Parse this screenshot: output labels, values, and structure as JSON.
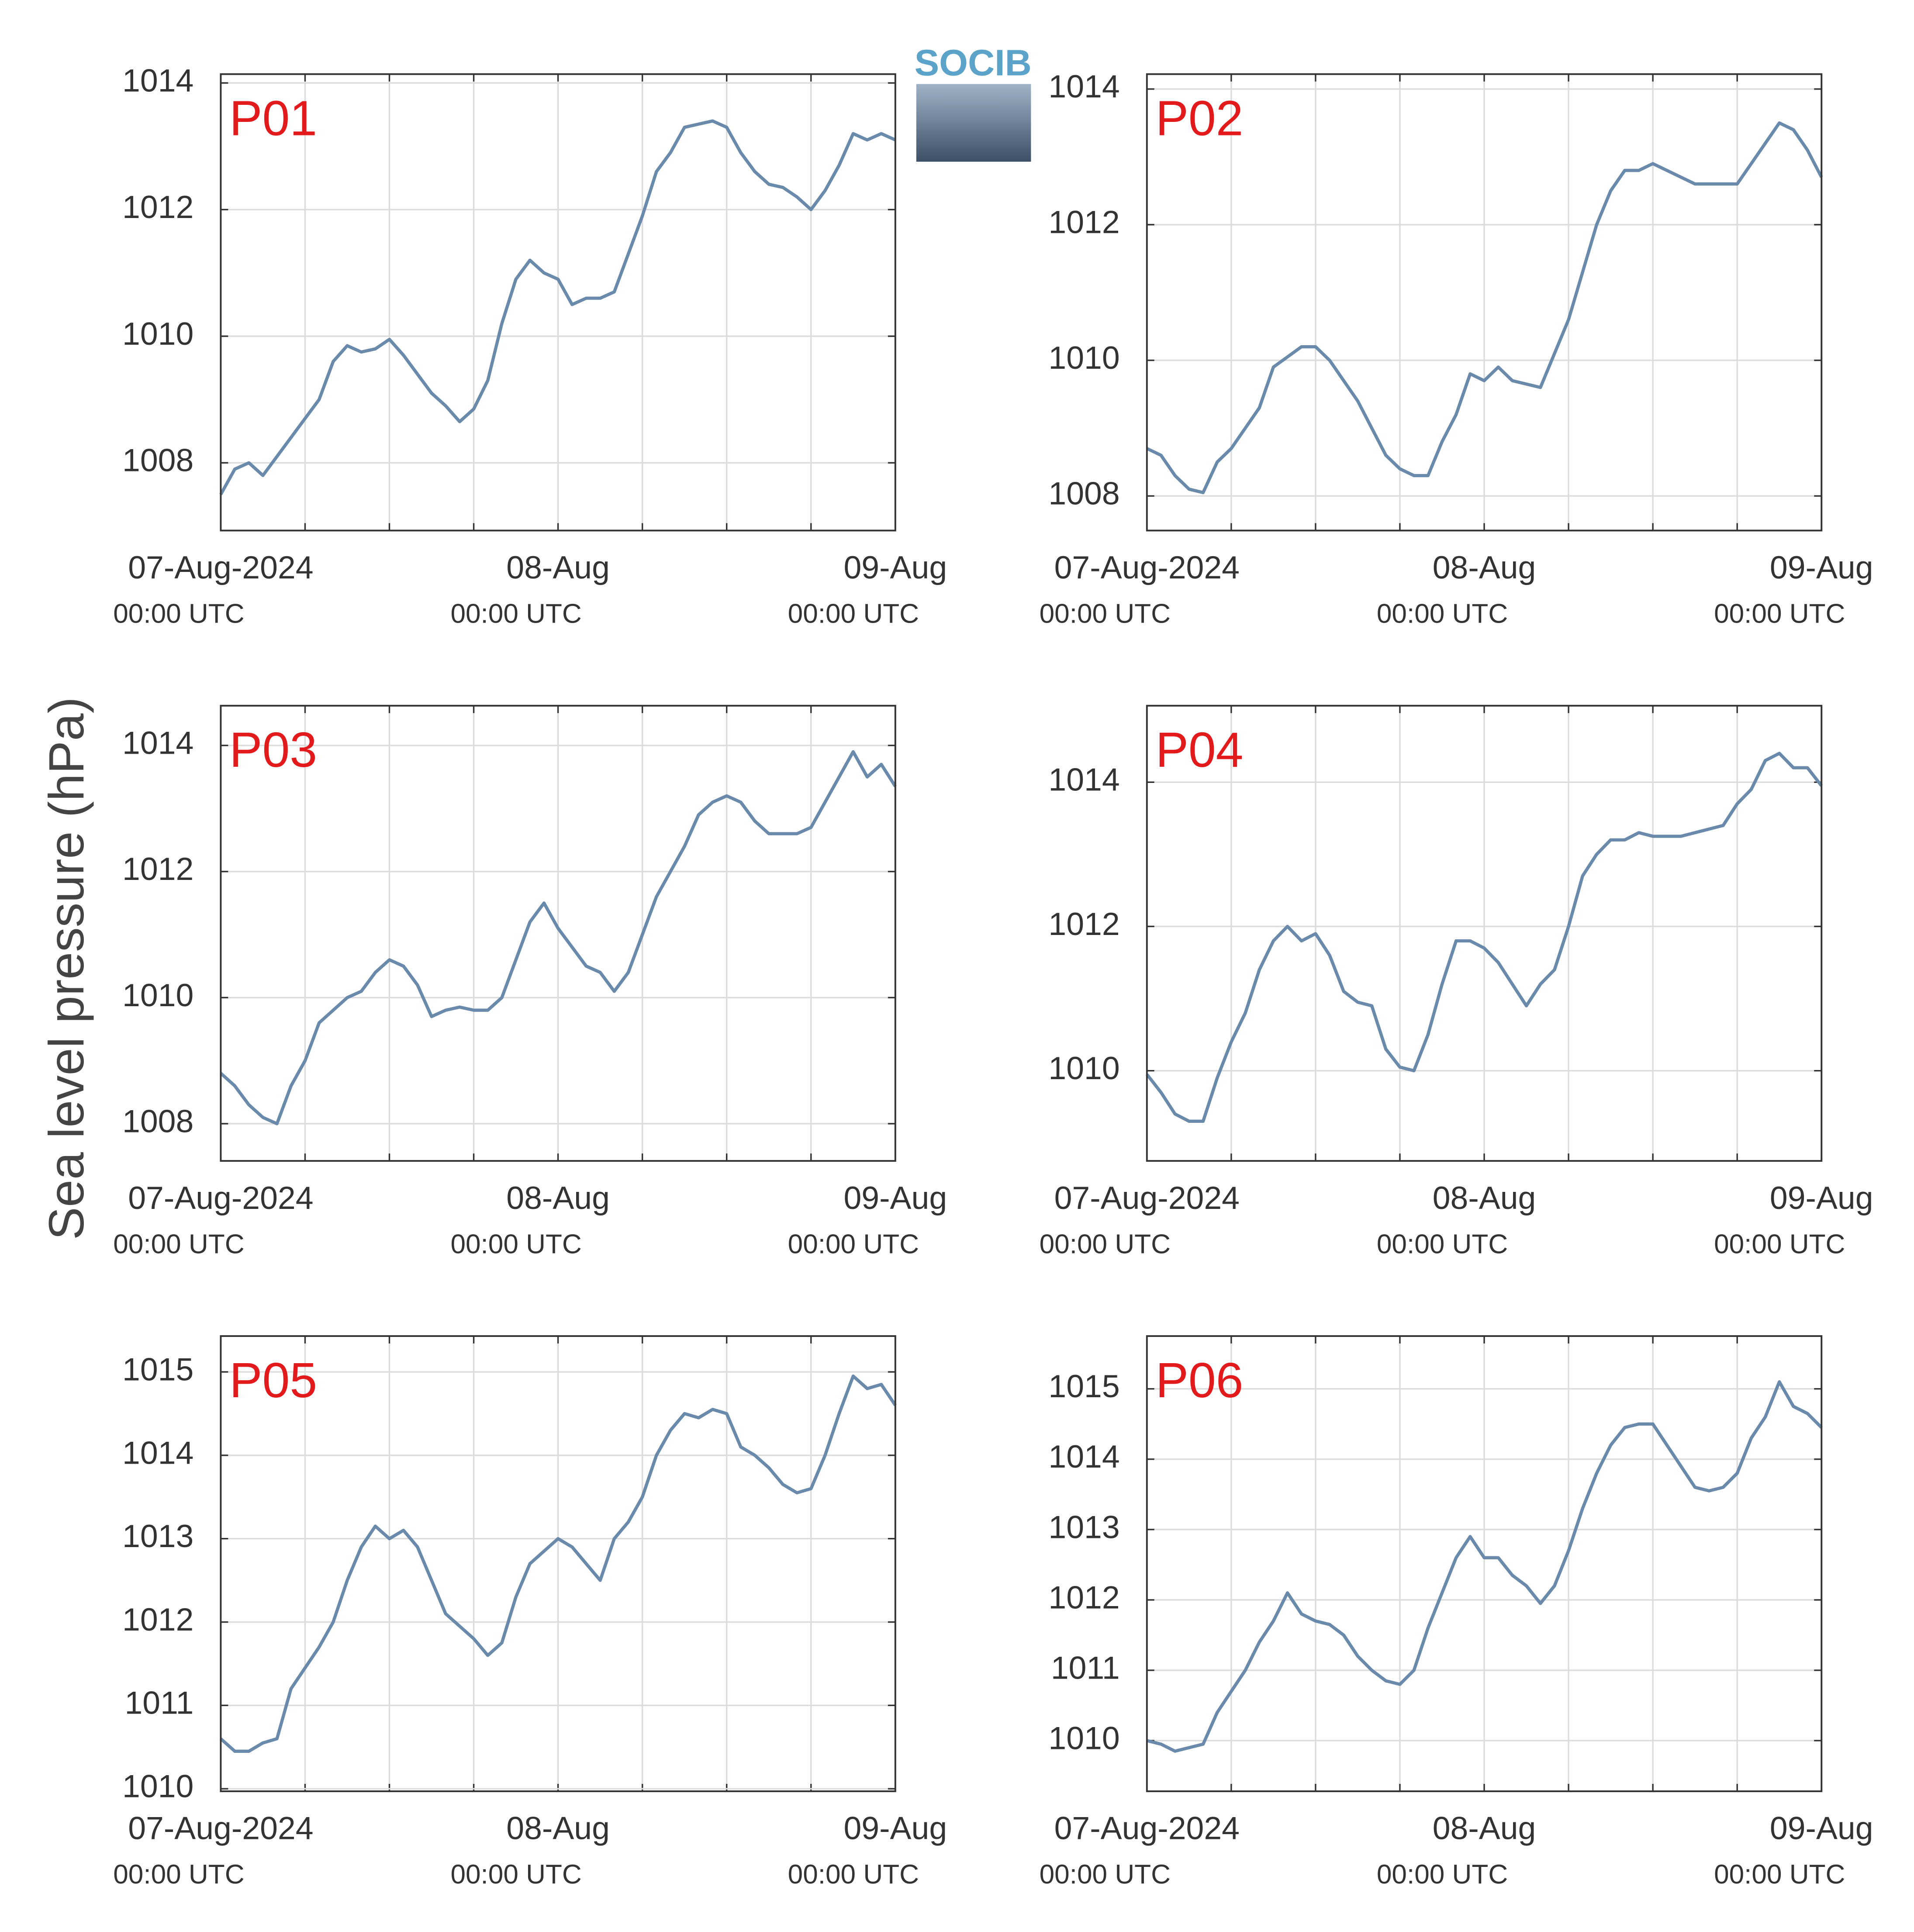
{
  "ylabel": "Sea level pressure (hPa)",
  "logo": "SOCIB",
  "chart_data": [
    {
      "type": "line",
      "title": "P01",
      "color": "#6a8aab",
      "grid": true,
      "x": [
        "2024-08-07T00:00Z",
        "2024-08-07T01:00Z",
        "2024-08-07T02:00Z",
        "2024-08-07T03:00Z",
        "2024-08-07T04:00Z",
        "2024-08-07T05:00Z",
        "2024-08-07T06:00Z",
        "2024-08-07T07:00Z",
        "2024-08-07T08:00Z",
        "2024-08-07T09:00Z",
        "2024-08-07T10:00Z",
        "2024-08-07T11:00Z",
        "2024-08-07T12:00Z",
        "2024-08-07T13:00Z",
        "2024-08-07T14:00Z",
        "2024-08-07T15:00Z",
        "2024-08-07T16:00Z",
        "2024-08-07T17:00Z",
        "2024-08-07T18:00Z",
        "2024-08-07T19:00Z",
        "2024-08-07T20:00Z",
        "2024-08-07T21:00Z",
        "2024-08-07T22:00Z",
        "2024-08-07T23:00Z",
        "2024-08-08T00:00Z",
        "2024-08-08T01:00Z",
        "2024-08-08T02:00Z",
        "2024-08-08T03:00Z",
        "2024-08-08T04:00Z",
        "2024-08-08T05:00Z",
        "2024-08-08T06:00Z",
        "2024-08-08T07:00Z",
        "2024-08-08T08:00Z",
        "2024-08-08T09:00Z",
        "2024-08-08T10:00Z",
        "2024-08-08T11:00Z",
        "2024-08-08T12:00Z",
        "2024-08-08T13:00Z",
        "2024-08-08T14:00Z",
        "2024-08-08T15:00Z",
        "2024-08-08T16:00Z",
        "2024-08-08T17:00Z",
        "2024-08-08T18:00Z",
        "2024-08-08T19:00Z",
        "2024-08-08T20:00Z",
        "2024-08-08T21:00Z",
        "2024-08-08T22:00Z",
        "2024-08-08T23:00Z",
        "2024-08-09T00:00Z"
      ],
      "values": [
        1007.5,
        1007.9,
        1008.0,
        1007.8,
        1008.1,
        1008.4,
        1008.7,
        1009.0,
        1009.6,
        1009.85,
        1009.75,
        1009.8,
        1009.95,
        1009.7,
        1009.4,
        1009.1,
        1008.9,
        1008.65,
        1008.85,
        1009.3,
        1010.2,
        1010.9,
        1011.2,
        1011.0,
        1010.9,
        1010.5,
        1010.6,
        1010.6,
        1010.7,
        1011.3,
        1011.9,
        1012.6,
        1012.9,
        1013.3,
        1013.35,
        1013.4,
        1013.3,
        1012.9,
        1012.6,
        1012.4,
        1012.35,
        1012.2,
        1012.0,
        1012.3,
        1012.7,
        1013.2,
        1013.1,
        1013.2,
        1013.1
      ],
      "xlim": [
        "2024-08-07T00:00Z",
        "2024-08-09T00:00Z"
      ],
      "xticks": [
        {
          "value": "2024-08-07T00:00Z",
          "label": [
            "07-Aug-2024",
            "00:00 UTC"
          ]
        },
        "2024-08-07T06:00Z",
        "2024-08-07T12:00Z",
        "2024-08-07T18:00Z",
        {
          "value": "2024-08-08T00:00Z",
          "label": [
            "08-Aug",
            "00:00 UTC"
          ]
        },
        "2024-08-08T06:00Z",
        "2024-08-08T12:00Z",
        "2024-08-08T18:00Z",
        {
          "value": "2024-08-09T00:00Z",
          "label": [
            "09-Aug",
            "00:00 UTC"
          ]
        }
      ],
      "ylim": [
        1006.93,
        1014.14
      ],
      "yticks": [
        1008,
        1010,
        1012,
        1014
      ]
    },
    {
      "type": "line",
      "title": "P02",
      "color": "#6a8aab",
      "grid": true,
      "x": [
        "2024-08-07T00:00Z",
        "2024-08-07T01:00Z",
        "2024-08-07T02:00Z",
        "2024-08-07T03:00Z",
        "2024-08-07T04:00Z",
        "2024-08-07T05:00Z",
        "2024-08-07T06:00Z",
        "2024-08-07T07:00Z",
        "2024-08-07T08:00Z",
        "2024-08-07T09:00Z",
        "2024-08-07T10:00Z",
        "2024-08-07T11:00Z",
        "2024-08-07T12:00Z",
        "2024-08-07T13:00Z",
        "2024-08-07T14:00Z",
        "2024-08-07T15:00Z",
        "2024-08-07T16:00Z",
        "2024-08-07T17:00Z",
        "2024-08-07T18:00Z",
        "2024-08-07T19:00Z",
        "2024-08-07T20:00Z",
        "2024-08-07T21:00Z",
        "2024-08-07T22:00Z",
        "2024-08-07T23:00Z",
        "2024-08-08T00:00Z",
        "2024-08-08T01:00Z",
        "2024-08-08T02:00Z",
        "2024-08-08T03:00Z",
        "2024-08-08T04:00Z",
        "2024-08-08T05:00Z",
        "2024-08-08T06:00Z",
        "2024-08-08T07:00Z",
        "2024-08-08T08:00Z",
        "2024-08-08T09:00Z",
        "2024-08-08T10:00Z",
        "2024-08-08T11:00Z",
        "2024-08-08T12:00Z",
        "2024-08-08T13:00Z",
        "2024-08-08T14:00Z",
        "2024-08-08T15:00Z",
        "2024-08-08T16:00Z",
        "2024-08-08T17:00Z",
        "2024-08-08T18:00Z",
        "2024-08-08T19:00Z",
        "2024-08-08T20:00Z",
        "2024-08-08T21:00Z",
        "2024-08-08T22:00Z",
        "2024-08-08T23:00Z",
        "2024-08-09T00:00Z"
      ],
      "values": [
        1008.7,
        1008.6,
        1008.3,
        1008.1,
        1008.05,
        1008.5,
        1008.7,
        1009.0,
        1009.3,
        1009.9,
        1010.05,
        1010.2,
        1010.2,
        1010.0,
        1009.7,
        1009.4,
        1009.0,
        1008.6,
        1008.4,
        1008.3,
        1008.3,
        1008.8,
        1009.2,
        1009.8,
        1009.7,
        1009.9,
        1009.7,
        1009.65,
        1009.6,
        1010.1,
        1010.6,
        1011.3,
        1012.0,
        1012.5,
        1012.8,
        1012.8,
        1012.9,
        1012.8,
        1012.7,
        1012.6,
        1012.6,
        1012.6,
        1012.6,
        1012.9,
        1013.2,
        1013.5,
        1013.4,
        1013.1,
        1012.7
      ],
      "xlim": [
        "2024-08-07T00:00Z",
        "2024-08-09T00:00Z"
      ],
      "xticks": [
        {
          "value": "2024-08-07T00:00Z",
          "label": [
            "07-Aug-2024",
            "00:00 UTC"
          ]
        },
        "2024-08-07T06:00Z",
        "2024-08-07T12:00Z",
        "2024-08-07T18:00Z",
        {
          "value": "2024-08-08T00:00Z",
          "label": [
            "08-Aug",
            "00:00 UTC"
          ]
        },
        "2024-08-08T06:00Z",
        "2024-08-08T12:00Z",
        "2024-08-08T18:00Z",
        {
          "value": "2024-08-09T00:00Z",
          "label": [
            "09-Aug",
            "00:00 UTC"
          ]
        }
      ],
      "ylim": [
        1007.49,
        1014.22
      ],
      "yticks": [
        1008,
        1010,
        1012,
        1014
      ]
    },
    {
      "type": "line",
      "title": "P03",
      "color": "#6a8aab",
      "grid": true,
      "x": [
        "2024-08-07T00:00Z",
        "2024-08-07T01:00Z",
        "2024-08-07T02:00Z",
        "2024-08-07T03:00Z",
        "2024-08-07T04:00Z",
        "2024-08-07T05:00Z",
        "2024-08-07T06:00Z",
        "2024-08-07T07:00Z",
        "2024-08-07T08:00Z",
        "2024-08-07T09:00Z",
        "2024-08-07T10:00Z",
        "2024-08-07T11:00Z",
        "2024-08-07T12:00Z",
        "2024-08-07T13:00Z",
        "2024-08-07T14:00Z",
        "2024-08-07T15:00Z",
        "2024-08-07T16:00Z",
        "2024-08-07T17:00Z",
        "2024-08-07T18:00Z",
        "2024-08-07T19:00Z",
        "2024-08-07T20:00Z",
        "2024-08-07T21:00Z",
        "2024-08-07T22:00Z",
        "2024-08-07T23:00Z",
        "2024-08-08T00:00Z",
        "2024-08-08T01:00Z",
        "2024-08-08T02:00Z",
        "2024-08-08T03:00Z",
        "2024-08-08T04:00Z",
        "2024-08-08T05:00Z",
        "2024-08-08T06:00Z",
        "2024-08-08T07:00Z",
        "2024-08-08T08:00Z",
        "2024-08-08T09:00Z",
        "2024-08-08T10:00Z",
        "2024-08-08T11:00Z",
        "2024-08-08T12:00Z",
        "2024-08-08T13:00Z",
        "2024-08-08T14:00Z",
        "2024-08-08T15:00Z",
        "2024-08-08T16:00Z",
        "2024-08-08T17:00Z",
        "2024-08-08T18:00Z",
        "2024-08-08T19:00Z",
        "2024-08-08T20:00Z",
        "2024-08-08T21:00Z",
        "2024-08-08T22:00Z",
        "2024-08-08T23:00Z",
        "2024-08-09T00:00Z"
      ],
      "values": [
        1008.8,
        1008.6,
        1008.3,
        1008.1,
        1008.0,
        1008.6,
        1009.0,
        1009.6,
        1009.8,
        1010.0,
        1010.1,
        1010.4,
        1010.6,
        1010.5,
        1010.2,
        1009.7,
        1009.8,
        1009.85,
        1009.8,
        1009.8,
        1010.0,
        1010.6,
        1011.2,
        1011.5,
        1011.1,
        1010.8,
        1010.5,
        1010.4,
        1010.1,
        1010.4,
        1011.0,
        1011.6,
        1012.0,
        1012.4,
        1012.9,
        1013.1,
        1013.2,
        1013.1,
        1012.8,
        1012.6,
        1012.6,
        1012.6,
        1012.7,
        1013.1,
        1013.5,
        1013.9,
        1013.5,
        1013.7,
        1013.35
      ],
      "xlim": [
        "2024-08-07T00:00Z",
        "2024-08-09T00:00Z"
      ],
      "xticks": [
        {
          "value": "2024-08-07T00:00Z",
          "label": [
            "07-Aug-2024",
            "00:00 UTC"
          ]
        },
        "2024-08-07T06:00Z",
        "2024-08-07T12:00Z",
        "2024-08-07T18:00Z",
        {
          "value": "2024-08-08T00:00Z",
          "label": [
            "08-Aug",
            "00:00 UTC"
          ]
        },
        "2024-08-08T06:00Z",
        "2024-08-08T12:00Z",
        "2024-08-08T18:00Z",
        {
          "value": "2024-08-09T00:00Z",
          "label": [
            "09-Aug",
            "00:00 UTC"
          ]
        }
      ],
      "ylim": [
        1007.41,
        1014.63
      ],
      "yticks": [
        1008,
        1010,
        1012,
        1014
      ]
    },
    {
      "type": "line",
      "title": "P04",
      "color": "#6a8aab",
      "grid": true,
      "x": [
        "2024-08-07T00:00Z",
        "2024-08-07T01:00Z",
        "2024-08-07T02:00Z",
        "2024-08-07T03:00Z",
        "2024-08-07T04:00Z",
        "2024-08-07T05:00Z",
        "2024-08-07T06:00Z",
        "2024-08-07T07:00Z",
        "2024-08-07T08:00Z",
        "2024-08-07T09:00Z",
        "2024-08-07T10:00Z",
        "2024-08-07T11:00Z",
        "2024-08-07T12:00Z",
        "2024-08-07T13:00Z",
        "2024-08-07T14:00Z",
        "2024-08-07T15:00Z",
        "2024-08-07T16:00Z",
        "2024-08-07T17:00Z",
        "2024-08-07T18:00Z",
        "2024-08-07T19:00Z",
        "2024-08-07T20:00Z",
        "2024-08-07T21:00Z",
        "2024-08-07T22:00Z",
        "2024-08-07T23:00Z",
        "2024-08-08T00:00Z",
        "2024-08-08T01:00Z",
        "2024-08-08T02:00Z",
        "2024-08-08T03:00Z",
        "2024-08-08T04:00Z",
        "2024-08-08T05:00Z",
        "2024-08-08T06:00Z",
        "2024-08-08T07:00Z",
        "2024-08-08T08:00Z",
        "2024-08-08T09:00Z",
        "2024-08-08T10:00Z",
        "2024-08-08T11:00Z",
        "2024-08-08T12:00Z",
        "2024-08-08T13:00Z",
        "2024-08-08T14:00Z",
        "2024-08-08T15:00Z",
        "2024-08-08T16:00Z",
        "2024-08-08T17:00Z",
        "2024-08-08T18:00Z",
        "2024-08-08T19:00Z",
        "2024-08-08T20:00Z",
        "2024-08-08T21:00Z",
        "2024-08-08T22:00Z",
        "2024-08-08T23:00Z",
        "2024-08-09T00:00Z"
      ],
      "values": [
        1009.95,
        1009.7,
        1009.4,
        1009.3,
        1009.3,
        1009.9,
        1010.4,
        1010.8,
        1011.4,
        1011.8,
        1012.0,
        1011.8,
        1011.9,
        1011.6,
        1011.1,
        1010.95,
        1010.9,
        1010.3,
        1010.05,
        1010.0,
        1010.5,
        1011.2,
        1011.8,
        1011.8,
        1011.7,
        1011.5,
        1011.2,
        1010.9,
        1011.2,
        1011.4,
        1012.0,
        1012.7,
        1013.0,
        1013.2,
        1013.2,
        1013.3,
        1013.25,
        1013.25,
        1013.25,
        1013.3,
        1013.35,
        1013.4,
        1013.7,
        1013.9,
        1014.3,
        1014.4,
        1014.2,
        1014.2,
        1013.95
      ],
      "xlim": [
        "2024-08-07T00:00Z",
        "2024-08-09T00:00Z"
      ],
      "xticks": [
        {
          "value": "2024-08-07T00:00Z",
          "label": [
            "07-Aug-2024",
            "00:00 UTC"
          ]
        },
        "2024-08-07T06:00Z",
        "2024-08-07T12:00Z",
        "2024-08-07T18:00Z",
        {
          "value": "2024-08-08T00:00Z",
          "label": [
            "08-Aug",
            "00:00 UTC"
          ]
        },
        "2024-08-08T06:00Z",
        "2024-08-08T12:00Z",
        "2024-08-08T18:00Z",
        {
          "value": "2024-08-09T00:00Z",
          "label": [
            "09-Aug",
            "00:00 UTC"
          ]
        }
      ],
      "ylim": [
        1008.75,
        1015.06
      ],
      "yticks": [
        1010,
        1012,
        1014
      ]
    },
    {
      "type": "line",
      "title": "P05",
      "color": "#6a8aab",
      "grid": true,
      "x": [
        "2024-08-07T00:00Z",
        "2024-08-07T01:00Z",
        "2024-08-07T02:00Z",
        "2024-08-07T03:00Z",
        "2024-08-07T04:00Z",
        "2024-08-07T05:00Z",
        "2024-08-07T06:00Z",
        "2024-08-07T07:00Z",
        "2024-08-07T08:00Z",
        "2024-08-07T09:00Z",
        "2024-08-07T10:00Z",
        "2024-08-07T11:00Z",
        "2024-08-07T12:00Z",
        "2024-08-07T13:00Z",
        "2024-08-07T14:00Z",
        "2024-08-07T15:00Z",
        "2024-08-07T16:00Z",
        "2024-08-07T17:00Z",
        "2024-08-07T18:00Z",
        "2024-08-07T19:00Z",
        "2024-08-07T20:00Z",
        "2024-08-07T21:00Z",
        "2024-08-07T22:00Z",
        "2024-08-07T23:00Z",
        "2024-08-08T00:00Z",
        "2024-08-08T01:00Z",
        "2024-08-08T02:00Z",
        "2024-08-08T03:00Z",
        "2024-08-08T04:00Z",
        "2024-08-08T05:00Z",
        "2024-08-08T06:00Z",
        "2024-08-08T07:00Z",
        "2024-08-08T08:00Z",
        "2024-08-08T09:00Z",
        "2024-08-08T10:00Z",
        "2024-08-08T11:00Z",
        "2024-08-08T12:00Z",
        "2024-08-08T13:00Z",
        "2024-08-08T14:00Z",
        "2024-08-08T15:00Z",
        "2024-08-08T16:00Z",
        "2024-08-08T17:00Z",
        "2024-08-08T18:00Z",
        "2024-08-08T19:00Z",
        "2024-08-08T20:00Z",
        "2024-08-08T21:00Z",
        "2024-08-08T22:00Z",
        "2024-08-08T23:00Z",
        "2024-08-09T00:00Z"
      ],
      "values": [
        1010.6,
        1010.45,
        1010.45,
        1010.55,
        1010.6,
        1011.2,
        1011.45,
        1011.7,
        1012.0,
        1012.5,
        1012.9,
        1013.15,
        1013.0,
        1013.1,
        1012.9,
        1012.5,
        1012.1,
        1011.95,
        1011.8,
        1011.6,
        1011.75,
        1012.3,
        1012.7,
        1012.85,
        1013.0,
        1012.9,
        1012.7,
        1012.5,
        1013.0,
        1013.2,
        1013.5,
        1014.0,
        1014.3,
        1014.5,
        1014.45,
        1014.55,
        1014.5,
        1014.1,
        1014.0,
        1013.85,
        1013.65,
        1013.55,
        1013.6,
        1014.0,
        1014.5,
        1014.95,
        1014.8,
        1014.85,
        1014.6
      ],
      "xlim": [
        "2024-08-07T00:00Z",
        "2024-08-09T00:00Z"
      ],
      "xticks": [
        {
          "value": "2024-08-07T00:00Z",
          "label": [
            "07-Aug-2024",
            "00:00 UTC"
          ]
        },
        "2024-08-07T06:00Z",
        "2024-08-07T12:00Z",
        "2024-08-07T18:00Z",
        {
          "value": "2024-08-08T00:00Z",
          "label": [
            "08-Aug",
            "00:00 UTC"
          ]
        },
        "2024-08-08T06:00Z",
        "2024-08-08T12:00Z",
        "2024-08-08T18:00Z",
        {
          "value": "2024-08-09T00:00Z",
          "label": [
            "09-Aug",
            "00:00 UTC"
          ]
        }
      ],
      "ylim": [
        1009.97,
        1015.43
      ],
      "yticks": [
        1010,
        1011,
        1012,
        1013,
        1014,
        1015
      ]
    },
    {
      "type": "line",
      "title": "P06",
      "color": "#6a8aab",
      "grid": true,
      "x": [
        "2024-08-07T00:00Z",
        "2024-08-07T01:00Z",
        "2024-08-07T02:00Z",
        "2024-08-07T03:00Z",
        "2024-08-07T04:00Z",
        "2024-08-07T05:00Z",
        "2024-08-07T06:00Z",
        "2024-08-07T07:00Z",
        "2024-08-07T08:00Z",
        "2024-08-07T09:00Z",
        "2024-08-07T10:00Z",
        "2024-08-07T11:00Z",
        "2024-08-07T12:00Z",
        "2024-08-07T13:00Z",
        "2024-08-07T14:00Z",
        "2024-08-07T15:00Z",
        "2024-08-07T16:00Z",
        "2024-08-07T17:00Z",
        "2024-08-07T18:00Z",
        "2024-08-07T19:00Z",
        "2024-08-07T20:00Z",
        "2024-08-07T21:00Z",
        "2024-08-07T22:00Z",
        "2024-08-07T23:00Z",
        "2024-08-08T00:00Z",
        "2024-08-08T01:00Z",
        "2024-08-08T02:00Z",
        "2024-08-08T03:00Z",
        "2024-08-08T04:00Z",
        "2024-08-08T05:00Z",
        "2024-08-08T06:00Z",
        "2024-08-08T07:00Z",
        "2024-08-08T08:00Z",
        "2024-08-08T09:00Z",
        "2024-08-08T10:00Z",
        "2024-08-08T11:00Z",
        "2024-08-08T12:00Z",
        "2024-08-08T13:00Z",
        "2024-08-08T14:00Z",
        "2024-08-08T15:00Z",
        "2024-08-08T16:00Z",
        "2024-08-08T17:00Z",
        "2024-08-08T18:00Z",
        "2024-08-08T19:00Z",
        "2024-08-08T20:00Z",
        "2024-08-08T21:00Z",
        "2024-08-08T22:00Z",
        "2024-08-08T23:00Z",
        "2024-08-09T00:00Z"
      ],
      "values": [
        1010.0,
        1009.95,
        1009.85,
        1009.9,
        1009.95,
        1010.4,
        1010.7,
        1011.0,
        1011.4,
        1011.7,
        1012.1,
        1011.8,
        1011.7,
        1011.65,
        1011.5,
        1011.2,
        1011.0,
        1010.85,
        1010.8,
        1011.0,
        1011.6,
        1012.1,
        1012.6,
        1012.9,
        1012.6,
        1012.6,
        1012.35,
        1012.2,
        1011.95,
        1012.2,
        1012.7,
        1013.3,
        1013.8,
        1014.2,
        1014.45,
        1014.5,
        1014.5,
        1014.2,
        1013.9,
        1013.6,
        1013.55,
        1013.6,
        1013.8,
        1014.3,
        1014.6,
        1015.1,
        1014.75,
        1014.65,
        1014.45
      ],
      "xlim": [
        "2024-08-07T00:00Z",
        "2024-08-09T00:00Z"
      ],
      "xticks": [
        {
          "value": "2024-08-07T00:00Z",
          "label": [
            "07-Aug-2024",
            "00:00 UTC"
          ]
        },
        "2024-08-07T06:00Z",
        "2024-08-07T12:00Z",
        "2024-08-07T18:00Z",
        {
          "value": "2024-08-08T00:00Z",
          "label": [
            "08-Aug",
            "00:00 UTC"
          ]
        },
        "2024-08-08T06:00Z",
        "2024-08-08T12:00Z",
        "2024-08-08T18:00Z",
        {
          "value": "2024-08-09T00:00Z",
          "label": [
            "09-Aug",
            "00:00 UTC"
          ]
        }
      ],
      "ylim": [
        1009.28,
        1015.75
      ],
      "yticks": [
        1010,
        1011,
        1012,
        1013,
        1014,
        1015
      ]
    }
  ]
}
